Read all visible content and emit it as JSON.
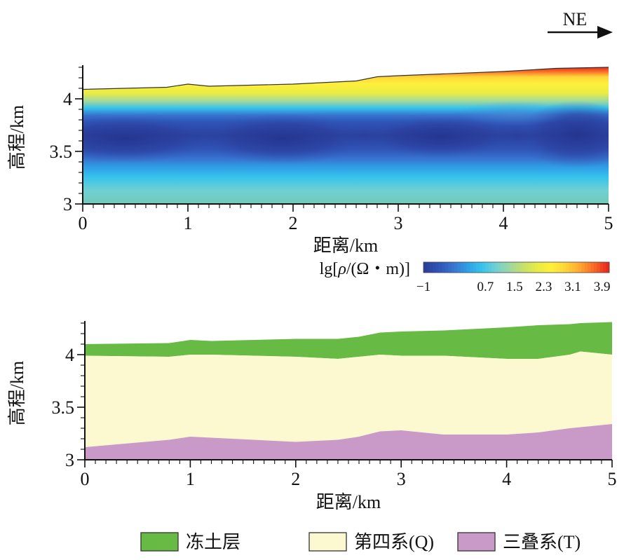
{
  "direction": {
    "label": "NE"
  },
  "chart_data": [
    {
      "type": "heatmap",
      "xlabel": "距离/km",
      "ylabel": "高程/km",
      "xlim": [
        0,
        5
      ],
      "ylim": [
        3,
        4.32
      ],
      "x_ticks": [
        "0",
        "1",
        "2",
        "3",
        "4",
        "5"
      ],
      "y_ticks": [
        "3",
        "3.5",
        "4"
      ],
      "surface_elevation": {
        "x": [
          0,
          0.8,
          1.0,
          1.2,
          2.0,
          2.6,
          2.8,
          3.0,
          4.0,
          4.5,
          5.0
        ],
        "y": [
          4.09,
          4.11,
          4.14,
          4.12,
          4.14,
          4.17,
          4.21,
          4.22,
          4.26,
          4.29,
          4.3
        ]
      },
      "colorbar": {
        "title_prefix": "lg",
        "title_var": "ρ",
        "title_suffix": "/(Ω・m)",
        "min": -1,
        "max": 4.1,
        "tick_labels": [
          "−1",
          "0.7",
          "1.5",
          "2.3",
          "3.1",
          "3.9"
        ],
        "colors": [
          "#2b3e9c",
          "#2f55b8",
          "#3774cf",
          "#2f9ee6",
          "#34c2ec",
          "#6fd0d3",
          "#9dd7a3",
          "#c6e06a",
          "#e8ec44",
          "#fff03a",
          "#ffd43a",
          "#ffa82f",
          "#f96a26",
          "#e62a1f"
        ]
      }
    },
    {
      "type": "area",
      "xlabel": "距离/km",
      "ylabel": "高程/km",
      "xlim": [
        0,
        5
      ],
      "ylim": [
        3,
        4.32
      ],
      "x_ticks": [
        "0",
        "1",
        "2",
        "3",
        "4",
        "5"
      ],
      "y_ticks": [
        "3",
        "3.5",
        "4"
      ],
      "x": [
        0,
        0.8,
        1.0,
        1.2,
        2.0,
        2.4,
        2.6,
        2.8,
        3.0,
        3.4,
        4.0,
        4.3,
        4.6,
        4.7,
        5.0
      ],
      "series": [
        {
          "name": "冻土层",
          "color": "#67bb45",
          "top": [
            4.1,
            4.11,
            4.14,
            4.13,
            4.15,
            4.15,
            4.17,
            4.21,
            4.22,
            4.23,
            4.26,
            4.28,
            4.29,
            4.3,
            4.31
          ],
          "bottom": [
            3.99,
            3.98,
            4.0,
            4.0,
            3.98,
            3.96,
            3.98,
            4.0,
            3.99,
            3.99,
            3.96,
            3.96,
            4.0,
            4.03,
            4.0
          ]
        },
        {
          "name": "第四系(Q)",
          "color": "#fcf8d0",
          "top": [
            3.99,
            3.98,
            4.0,
            4.0,
            3.98,
            3.96,
            3.98,
            4.0,
            3.99,
            3.99,
            3.96,
            3.96,
            4.0,
            4.03,
            4.0
          ],
          "bottom": [
            3.12,
            3.19,
            3.22,
            3.21,
            3.17,
            3.19,
            3.22,
            3.27,
            3.28,
            3.24,
            3.24,
            3.26,
            3.3,
            3.31,
            3.34
          ]
        },
        {
          "name": "三叠系(T)",
          "color": "#c99ac7",
          "top": [
            3.12,
            3.19,
            3.22,
            3.21,
            3.17,
            3.19,
            3.22,
            3.27,
            3.28,
            3.24,
            3.24,
            3.26,
            3.3,
            3.31,
            3.34
          ],
          "bottom": [
            3.0,
            3.0,
            3.0,
            3.0,
            3.0,
            3.0,
            3.0,
            3.0,
            3.0,
            3.0,
            3.0,
            3.0,
            3.0,
            3.0,
            3.0
          ]
        }
      ]
    }
  ]
}
